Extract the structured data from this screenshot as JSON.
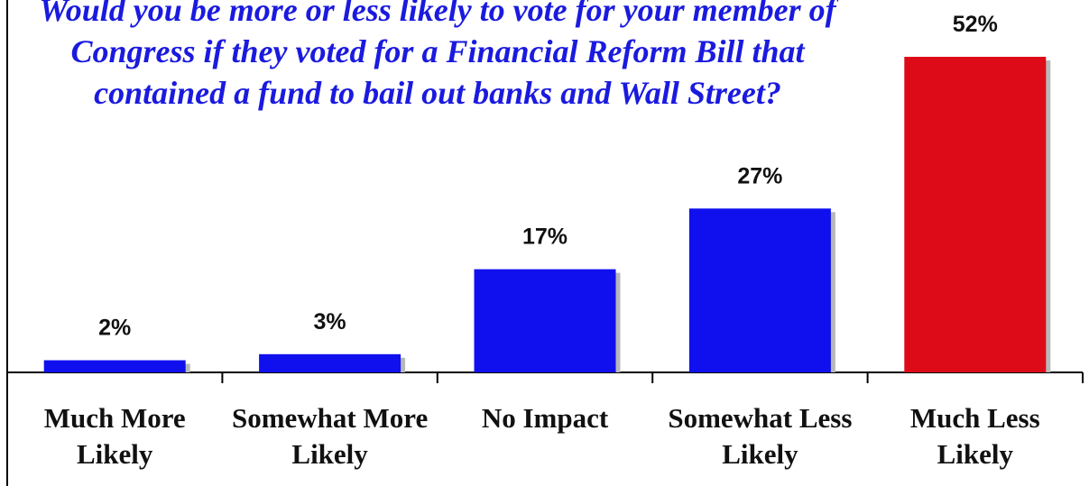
{
  "chart_data": {
    "type": "bar",
    "title": "Would you be more or less likely to vote for your member of Congress if they voted for a Financial Reform Bill that contained a fund to bail out banks and Wall Street?",
    "categories": [
      "Much More Likely",
      "Somewhat More Likely",
      "No Impact",
      "Somewhat Less Likely",
      "Much Less Likely"
    ],
    "values": [
      2,
      3,
      17,
      27,
      52
    ],
    "value_labels": [
      "2%",
      "3%",
      "17%",
      "27%",
      "52%"
    ],
    "colors": [
      "#1010ee",
      "#1010ee",
      "#1010ee",
      "#1010ee",
      "#dd0a18"
    ]
  }
}
